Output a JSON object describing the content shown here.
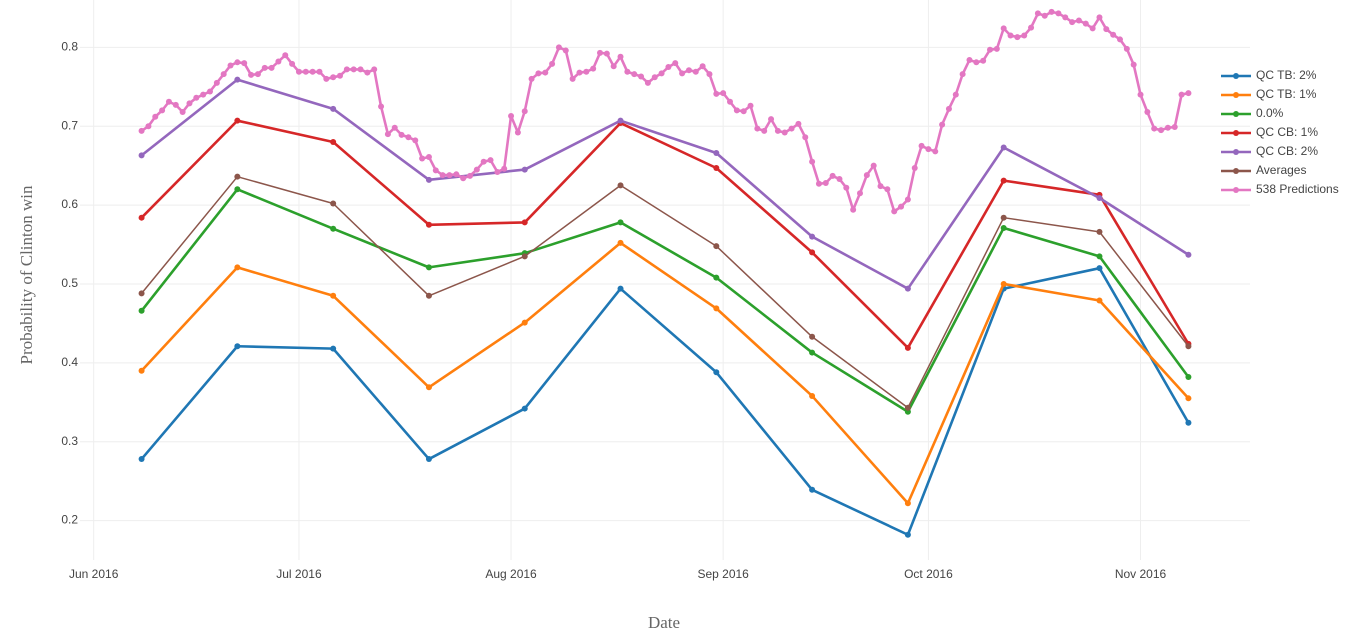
{
  "chart_data": {
    "type": "line",
    "xlabel": "Date",
    "ylabel": "Probability of Clinton win",
    "xlim": [
      "2016-05-30",
      "2016-11-17"
    ],
    "xticks": [
      {
        "value": "2016-06-01",
        "label": "Jun 2016"
      },
      {
        "value": "2016-07-01",
        "label": "Jul 2016"
      },
      {
        "value": "2016-08-01",
        "label": "Aug 2016"
      },
      {
        "value": "2016-09-01",
        "label": "Sep 2016"
      },
      {
        "value": "2016-10-01",
        "label": "Oct 2016"
      },
      {
        "value": "2016-11-01",
        "label": "Nov 2016"
      }
    ],
    "ylim": [
      0.15,
      0.86
    ],
    "yticks": [
      0.2,
      0.3,
      0.4,
      0.5,
      0.6,
      0.7,
      0.8
    ],
    "grid": true,
    "legend": "right",
    "x": [
      "2016-06-08",
      "2016-06-22",
      "2016-07-06",
      "2016-07-20",
      "2016-08-03",
      "2016-08-17",
      "2016-08-31",
      "2016-09-14",
      "2016-09-28",
      "2016-10-12",
      "2016-10-26",
      "2016-11-08"
    ],
    "series": [
      {
        "name": "QC TB: 2%",
        "color": "#1f77b4",
        "values": [
          0.278,
          0.421,
          0.418,
          0.278,
          0.342,
          0.494,
          0.388,
          0.239,
          0.182,
          0.494,
          0.52,
          0.324
        ]
      },
      {
        "name": "QC TB: 1%",
        "color": "#ff7f0e",
        "values": [
          0.39,
          0.521,
          0.485,
          0.369,
          0.451,
          0.552,
          0.469,
          0.358,
          0.222,
          0.5,
          0.479,
          0.355
        ]
      },
      {
        "name": "0.0%",
        "color": "#2ca02c",
        "values": [
          0.466,
          0.62,
          0.57,
          0.521,
          0.539,
          0.578,
          0.508,
          0.413,
          0.338,
          0.571,
          0.535,
          0.382
        ]
      },
      {
        "name": "QC CB: 1%",
        "color": "#d62728",
        "values": [
          0.584,
          0.707,
          0.68,
          0.575,
          0.578,
          0.704,
          0.647,
          0.54,
          0.419,
          0.631,
          0.613,
          0.424
        ]
      },
      {
        "name": "QC CB: 2%",
        "color": "#9467bd",
        "values": [
          0.663,
          0.759,
          0.722,
          0.632,
          0.645,
          0.707,
          0.666,
          0.56,
          0.494,
          0.673,
          0.609,
          0.537
        ]
      },
      {
        "name": "Averages",
        "color": "#8c564b",
        "thin": true,
        "values": [
          0.488,
          0.636,
          0.602,
          0.485,
          0.535,
          0.625,
          0.548,
          0.433,
          0.343,
          0.584,
          0.566,
          0.421
        ]
      },
      {
        "name": "538 Predictions",
        "color": "#e377c2",
        "x": [
          "2016-06-08",
          "2016-06-09",
          "2016-06-10",
          "2016-06-11",
          "2016-06-12",
          "2016-06-13",
          "2016-06-14",
          "2016-06-15",
          "2016-06-16",
          "2016-06-17",
          "2016-06-18",
          "2016-06-19",
          "2016-06-20",
          "2016-06-21",
          "2016-06-22",
          "2016-06-23",
          "2016-06-24",
          "2016-06-25",
          "2016-06-26",
          "2016-06-27",
          "2016-06-28",
          "2016-06-29",
          "2016-06-30",
          "2016-07-01",
          "2016-07-02",
          "2016-07-03",
          "2016-07-04",
          "2016-07-05",
          "2016-07-06",
          "2016-07-07",
          "2016-07-08",
          "2016-07-09",
          "2016-07-10",
          "2016-07-11",
          "2016-07-12",
          "2016-07-13",
          "2016-07-14",
          "2016-07-15",
          "2016-07-16",
          "2016-07-17",
          "2016-07-18",
          "2016-07-19",
          "2016-07-20",
          "2016-07-21",
          "2016-07-22",
          "2016-07-23",
          "2016-07-24",
          "2016-07-25",
          "2016-07-26",
          "2016-07-27",
          "2016-07-28",
          "2016-07-29",
          "2016-07-30",
          "2016-07-31",
          "2016-08-01",
          "2016-08-02",
          "2016-08-03",
          "2016-08-04",
          "2016-08-05",
          "2016-08-06",
          "2016-08-07",
          "2016-08-08",
          "2016-08-09",
          "2016-08-10",
          "2016-08-11",
          "2016-08-12",
          "2016-08-13",
          "2016-08-14",
          "2016-08-15",
          "2016-08-16",
          "2016-08-17",
          "2016-08-18",
          "2016-08-19",
          "2016-08-20",
          "2016-08-21",
          "2016-08-22",
          "2016-08-23",
          "2016-08-24",
          "2016-08-25",
          "2016-08-26",
          "2016-08-27",
          "2016-08-28",
          "2016-08-29",
          "2016-08-30",
          "2016-08-31",
          "2016-09-01",
          "2016-09-02",
          "2016-09-03",
          "2016-09-04",
          "2016-09-05",
          "2016-09-06",
          "2016-09-07",
          "2016-09-08",
          "2016-09-09",
          "2016-09-10",
          "2016-09-11",
          "2016-09-12",
          "2016-09-13",
          "2016-09-14",
          "2016-09-15",
          "2016-09-16",
          "2016-09-17",
          "2016-09-18",
          "2016-09-19",
          "2016-09-20",
          "2016-09-21",
          "2016-09-22",
          "2016-09-23",
          "2016-09-24",
          "2016-09-25",
          "2016-09-26",
          "2016-09-27",
          "2016-09-28",
          "2016-09-29",
          "2016-09-30",
          "2016-10-01",
          "2016-10-02",
          "2016-10-03",
          "2016-10-04",
          "2016-10-05",
          "2016-10-06",
          "2016-10-07",
          "2016-10-08",
          "2016-10-09",
          "2016-10-10",
          "2016-10-11",
          "2016-10-12",
          "2016-10-13",
          "2016-10-14",
          "2016-10-15",
          "2016-10-16",
          "2016-10-17",
          "2016-10-18",
          "2016-10-19",
          "2016-10-20",
          "2016-10-21",
          "2016-10-22",
          "2016-10-23",
          "2016-10-24",
          "2016-10-25",
          "2016-10-26",
          "2016-10-27",
          "2016-10-28",
          "2016-10-29",
          "2016-10-30",
          "2016-10-31",
          "2016-11-01",
          "2016-11-02",
          "2016-11-03",
          "2016-11-04",
          "2016-11-05",
          "2016-11-06",
          "2016-11-07",
          "2016-11-08"
        ],
        "values": [
          0.694,
          0.7,
          0.712,
          0.72,
          0.731,
          0.727,
          0.718,
          0.729,
          0.736,
          0.74,
          0.744,
          0.755,
          0.766,
          0.777,
          0.781,
          0.78,
          0.765,
          0.766,
          0.774,
          0.774,
          0.782,
          0.79,
          0.779,
          0.769,
          0.769,
          0.769,
          0.769,
          0.76,
          0.762,
          0.764,
          0.772,
          0.772,
          0.772,
          0.768,
          0.772,
          0.725,
          0.69,
          0.698,
          0.689,
          0.686,
          0.682,
          0.659,
          0.661,
          0.644,
          0.638,
          0.638,
          0.639,
          0.634,
          0.637,
          0.645,
          0.655,
          0.657,
          0.642,
          0.646,
          0.713,
          0.692,
          0.719,
          0.76,
          0.767,
          0.768,
          0.779,
          0.8,
          0.796,
          0.76,
          0.768,
          0.769,
          0.773,
          0.793,
          0.792,
          0.776,
          0.788,
          0.769,
          0.766,
          0.763,
          0.755,
          0.762,
          0.767,
          0.775,
          0.78,
          0.767,
          0.771,
          0.769,
          0.776,
          0.766,
          0.741,
          0.742,
          0.731,
          0.72,
          0.719,
          0.726,
          0.697,
          0.694,
          0.709,
          0.694,
          0.692,
          0.697,
          0.703,
          0.686,
          0.655,
          0.627,
          0.628,
          0.637,
          0.633,
          0.622,
          0.594,
          0.615,
          0.638,
          0.65,
          0.624,
          0.62,
          0.592,
          0.598,
          0.607,
          0.647,
          0.675,
          0.671,
          0.668,
          0.702,
          0.722,
          0.74,
          0.766,
          0.784,
          0.781,
          0.783,
          0.797,
          0.798,
          0.824,
          0.815,
          0.813,
          0.815,
          0.825,
          0.843,
          0.84,
          0.845,
          0.843,
          0.838,
          0.832,
          0.834,
          0.83,
          0.824,
          0.838,
          0.823,
          0.816,
          0.81,
          0.798,
          0.778,
          0.74,
          0.718,
          0.697,
          0.695,
          0.698,
          0.699,
          0.74,
          0.742
        ]
      }
    ]
  }
}
